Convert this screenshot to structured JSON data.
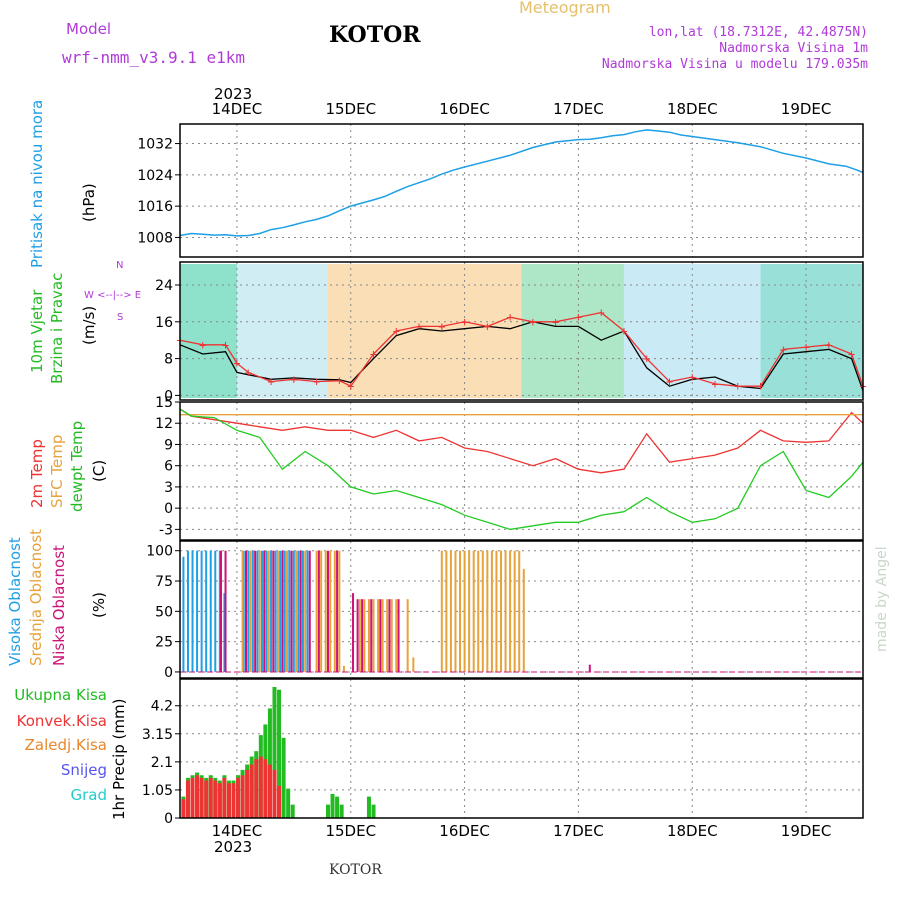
{
  "header": {
    "model_label": "Model",
    "model_name": "wrf-nmm_v3.9.1  e1km",
    "location": "KOTOR",
    "product": "Meteogram",
    "lonlat": "lon,lat (18.7312E, 42.4875N)",
    "altitude": "Nadmorska Visina 1m",
    "model_altitude": "Nadmorska Visina u modelu 179.035m",
    "footer_location": "KOTOR",
    "watermark": "made by Angel"
  },
  "x_axis": {
    "day_labels": [
      "14DEC",
      "15DEC",
      "16DEC",
      "17DEC",
      "18DEC",
      "19DEC"
    ],
    "year": "2023",
    "range_days": [
      -0.5,
      5.5
    ]
  },
  "chart_data": [
    {
      "type": "line",
      "panel": "pressure",
      "ylabel_lines": [
        "Pritisak na nivou mora",
        "(hPa)"
      ],
      "yticks": [
        "1008",
        "1016",
        "1024",
        "1032"
      ],
      "ylim": [
        1003,
        1037
      ],
      "color": "#1e9fe6",
      "series": [
        {
          "name": "Pritisak na nivou mora",
          "x": [
            -0.5,
            -0.4,
            -0.3,
            -0.2,
            -0.1,
            0,
            0.1,
            0.2,
            0.3,
            0.4,
            0.5,
            0.6,
            0.7,
            0.8,
            0.9,
            1,
            1.1,
            1.2,
            1.3,
            1.4,
            1.5,
            1.6,
            1.7,
            1.8,
            1.9,
            2,
            2.2,
            2.4,
            2.6,
            2.8,
            3,
            3.1,
            3.2,
            3.3,
            3.4,
            3.5,
            3.6,
            3.7,
            3.8,
            3.9,
            4,
            4.2,
            4.4,
            4.6,
            4.8,
            5,
            5.2,
            5.35,
            5.45,
            5.5
          ],
          "values": [
            1008.5,
            1009,
            1008.8,
            1008.6,
            1008.7,
            1008.4,
            1008.5,
            1009,
            1010,
            1010.5,
            1011.2,
            1012,
            1012.6,
            1013.5,
            1014.8,
            1016,
            1016.8,
            1017.6,
            1018.5,
            1019.8,
            1021,
            1022,
            1023,
            1024.2,
            1025.2,
            1026,
            1027.5,
            1029,
            1031,
            1032.4,
            1033,
            1033.1,
            1033.5,
            1034,
            1034.3,
            1035,
            1035.5,
            1035.2,
            1034.9,
            1034.2,
            1033.8,
            1033,
            1032.2,
            1031.2,
            1029.5,
            1028.3,
            1026.8,
            1026.2,
            1025.2,
            1024.6
          ]
        }
      ]
    },
    {
      "type": "line",
      "panel": "wind",
      "ylabel_lines": [
        "10m Vjetar",
        "Brzina i Pravac",
        "(m/s)"
      ],
      "direction_legend": [
        "N",
        "W <--|--> E",
        "S"
      ],
      "yticks": [
        "0",
        "8",
        "16",
        "24"
      ],
      "ylim": [
        -1,
        29
      ],
      "series": [
        {
          "name": "Brzina",
          "color": "#000000",
          "x": [
            -0.5,
            -0.3,
            -0.1,
            0,
            0.1,
            0.3,
            0.5,
            0.7,
            0.9,
            1,
            1.2,
            1.4,
            1.6,
            1.8,
            2,
            2.2,
            2.4,
            2.6,
            2.8,
            3,
            3.2,
            3.4,
            3.6,
            3.8,
            4,
            4.2,
            4.4,
            4.6,
            4.8,
            5,
            5.2,
            5.4,
            5.5
          ],
          "values": [
            11,
            9,
            9.5,
            5,
            4.5,
            3.5,
            3.8,
            3.5,
            3.4,
            2.8,
            8,
            13,
            14.5,
            14,
            14.5,
            15,
            14.5,
            16,
            15,
            15,
            12,
            14,
            6,
            2,
            3.5,
            4,
            2,
            1.5,
            9,
            9.5,
            10,
            8,
            1
          ]
        },
        {
          "name": "Udari",
          "color": "#ee3333",
          "x": [
            -0.5,
            -0.3,
            -0.1,
            0,
            0.1,
            0.3,
            0.5,
            0.7,
            0.9,
            1,
            1.2,
            1.4,
            1.6,
            1.8,
            2,
            2.2,
            2.4,
            2.6,
            2.8,
            3,
            3.2,
            3.4,
            3.6,
            3.8,
            4,
            4.2,
            4.4,
            4.6,
            4.8,
            5,
            5.2,
            5.4,
            5.5
          ],
          "values": [
            12,
            11,
            11,
            7,
            5,
            3,
            3.5,
            3,
            3.2,
            2,
            9,
            14,
            15,
            15,
            16,
            15,
            17,
            16,
            16,
            17,
            18,
            14,
            8,
            3,
            4,
            2.5,
            2,
            2,
            10,
            10.5,
            11,
            9,
            2
          ]
        }
      ]
    },
    {
      "type": "line",
      "panel": "temperature",
      "ylabel_lines": [
        "2m Temp",
        "SFC Temp",
        "dewpt Temp",
        "(C)"
      ],
      "yticks": [
        "-3",
        "0",
        "3",
        "6",
        "9",
        "12",
        "15"
      ],
      "ylim": [
        -4.5,
        15
      ],
      "series": [
        {
          "name": "2m Temp",
          "color": "#ee3333",
          "x": [
            -0.5,
            -0.4,
            -0.2,
            0,
            0.2,
            0.4,
            0.6,
            0.8,
            1,
            1.2,
            1.4,
            1.6,
            1.8,
            2,
            2.2,
            2.4,
            2.6,
            2.8,
            3,
            3.2,
            3.4,
            3.6,
            3.8,
            4,
            4.2,
            4.4,
            4.6,
            4.8,
            5,
            5.2,
            5.4,
            5.5
          ],
          "values": [
            14,
            13,
            12.5,
            12,
            11.5,
            11,
            11.5,
            11,
            11,
            10,
            11,
            9.5,
            10,
            8.5,
            8,
            7,
            6,
            7,
            5.5,
            5,
            5.5,
            10.5,
            6.5,
            7,
            7.5,
            8.5,
            11,
            9.5,
            9.3,
            9.5,
            13.5,
            12
          ]
        },
        {
          "name": "SFC Temp",
          "color": "#e6a23c",
          "x": [
            -0.5,
            5.5
          ],
          "values": [
            13.2,
            13.2
          ]
        },
        {
          "name": "dewpt Temp",
          "color": "#22cc22",
          "x": [
            -0.5,
            -0.4,
            -0.2,
            0,
            0.2,
            0.4,
            0.6,
            0.8,
            1,
            1.2,
            1.4,
            1.6,
            1.8,
            2,
            2.2,
            2.4,
            2.6,
            2.8,
            3,
            3.2,
            3.4,
            3.6,
            3.8,
            4,
            4.2,
            4.4,
            4.6,
            4.8,
            5,
            5.2,
            5.4,
            5.5
          ],
          "values": [
            14,
            13,
            12.8,
            11,
            10,
            5.5,
            8,
            6,
            3,
            2,
            2.5,
            1.5,
            0.5,
            -1,
            -2,
            -3,
            -2.5,
            -2,
            -2,
            -1,
            -0.5,
            1.5,
            -0.5,
            -2,
            -1.5,
            0,
            6,
            8,
            2.5,
            1.5,
            4.5,
            6.5
          ]
        }
      ]
    },
    {
      "type": "bar",
      "panel": "cloud",
      "ylabel_lines": [
        "Visoka Oblacnost",
        "Srednja Oblacnost",
        "Niska Oblacnost",
        "(%)"
      ],
      "yticks": [
        "0",
        "25",
        "50",
        "75",
        "100"
      ],
      "ylim": [
        -5,
        108
      ],
      "series": [
        {
          "name": "Visoka Oblacnost",
          "color": "#1e9fe6",
          "x": [
            -0.47,
            -0.43,
            -0.39,
            -0.35,
            -0.31,
            -0.27,
            -0.23,
            -0.19,
            -0.15,
            -0.11,
            0.06,
            0.1,
            0.14,
            0.18,
            0.22,
            0.26,
            0.3,
            0.34,
            0.38,
            0.42,
            0.46,
            0.5,
            0.54,
            0.58,
            0.62
          ],
          "values": [
            95,
            100,
            100,
            100,
            100,
            100,
            100,
            100,
            100,
            65,
            100,
            100,
            100,
            100,
            100,
            100,
            100,
            100,
            100,
            100,
            100,
            100,
            100,
            100,
            100
          ]
        },
        {
          "name": "Srednja Oblacnost",
          "color": "#e6a23c",
          "x": [
            0.05,
            0.12,
            0.2,
            0.28,
            0.36,
            0.44,
            0.52,
            0.6,
            0.7,
            0.74,
            0.78,
            0.82,
            0.86,
            0.9,
            0.94,
            1.08,
            1.12,
            1.16,
            1.2,
            1.24,
            1.28,
            1.32,
            1.36,
            1.4,
            1.5,
            1.55,
            1.8,
            1.84,
            1.88,
            1.92,
            1.96,
            2,
            2.04,
            2.08,
            2.12,
            2.16,
            2.2,
            2.24,
            2.28,
            2.32,
            2.36,
            2.4,
            2.44,
            2.48,
            2.52
          ],
          "values": [
            100,
            100,
            100,
            100,
            100,
            100,
            100,
            100,
            100,
            100,
            100,
            100,
            100,
            100,
            5,
            60,
            60,
            60,
            60,
            60,
            60,
            60,
            60,
            60,
            60,
            12,
            100,
            100,
            100,
            100,
            100,
            100,
            100,
            100,
            100,
            100,
            100,
            100,
            100,
            100,
            100,
            100,
            100,
            100,
            85
          ]
        },
        {
          "name": "Niska Oblacnost",
          "color": "#cc1177",
          "x": [
            -0.14,
            -0.1,
            0.08,
            0.16,
            0.24,
            0.32,
            0.4,
            0.48,
            0.56,
            0.64,
            0.72,
            0.8,
            0.88,
            1.02,
            1.06,
            1.1,
            1.18,
            1.26,
            1.34,
            1.42,
            3.1
          ],
          "values": [
            100,
            100,
            100,
            100,
            100,
            100,
            100,
            100,
            100,
            100,
            100,
            100,
            100,
            65,
            60,
            60,
            60,
            60,
            60,
            60,
            6
          ]
        }
      ]
    },
    {
      "type": "bar",
      "panel": "precip",
      "ylabel_lines": [
        "1hr Precip (mm)"
      ],
      "legend": [
        "Ukupna Kisa",
        "Konvek.Kisa",
        "Zaledj.Kisa",
        "Snijeg",
        "Grad"
      ],
      "legend_colors": [
        "#22bb22",
        "#ee3333",
        "#e6a23c",
        "#5555ee",
        "#22cccc"
      ],
      "yticks": [
        "0",
        "1.05",
        "2.1",
        "3.15",
        "4.2"
      ],
      "ylim": [
        0,
        5.2
      ],
      "series": [
        {
          "name": "Ukupna Kisa",
          "color": "#22bb22",
          "x": [
            -0.47,
            -0.43,
            -0.39,
            -0.35,
            -0.31,
            -0.27,
            -0.23,
            -0.19,
            -0.15,
            -0.11,
            -0.07,
            -0.03,
            0.01,
            0.05,
            0.09,
            0.13,
            0.17,
            0.21,
            0.25,
            0.29,
            0.33,
            0.37,
            0.41,
            0.45,
            0.49,
            0.8,
            0.84,
            0.88,
            0.92,
            1.16,
            1.2
          ],
          "values": [
            0.8,
            1.5,
            1.6,
            1.7,
            1.6,
            1.5,
            1.6,
            1.5,
            1.4,
            1.6,
            1.4,
            1.4,
            1.6,
            1.8,
            2,
            2.3,
            2.5,
            3.1,
            3.5,
            4.1,
            4.9,
            4.8,
            3,
            1.1,
            0.5,
            0.5,
            0.9,
            0.8,
            0.5,
            0.8,
            0.5
          ]
        },
        {
          "name": "Konvek.Kisa",
          "color": "#ee3333",
          "x": [
            -0.47,
            -0.43,
            -0.39,
            -0.35,
            -0.31,
            -0.27,
            -0.23,
            -0.19,
            -0.15,
            -0.11,
            -0.07,
            -0.03,
            0.01,
            0.05,
            0.09,
            0.13,
            0.17,
            0.21,
            0.25,
            0.29,
            0.33,
            0.37
          ],
          "values": [
            0.7,
            1.4,
            1.5,
            1.6,
            1.5,
            1.4,
            1.5,
            1.4,
            1.3,
            1.5,
            1.3,
            1.3,
            1.5,
            1.6,
            1.8,
            2,
            2.2,
            2.3,
            2.2,
            2,
            1.8,
            1.2
          ]
        }
      ]
    }
  ]
}
